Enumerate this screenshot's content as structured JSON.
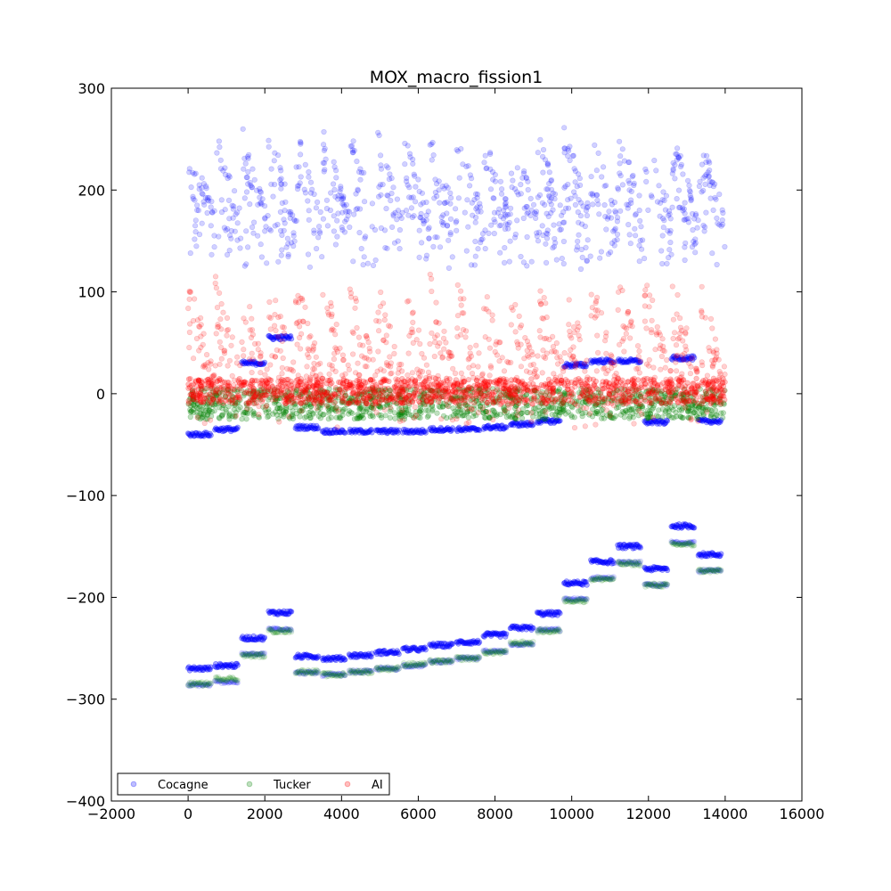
{
  "chart_data": {
    "type": "scatter",
    "title": "MOX_macro_fission1",
    "xlabel": "",
    "ylabel": "",
    "xlim": [
      -2000,
      16000
    ],
    "ylim": [
      -400,
      300
    ],
    "x_ticks": [
      -2000,
      0,
      2000,
      4000,
      6000,
      8000,
      10000,
      12000,
      14000,
      16000
    ],
    "y_ticks": [
      300,
      200,
      100,
      0,
      -100,
      -200,
      -300,
      -400
    ],
    "grid": false,
    "legend_position": "lower-left",
    "series": [
      {
        "name": "Cocagne",
        "color": "#0000ff",
        "marker": "circle",
        "clusters": [
          {
            "name": "upper-band",
            "x_range": [
              0,
              14000
            ],
            "y_range": [
              120,
              265
            ],
            "sawtooth": true
          },
          {
            "name": "lower-step-levels",
            "points": [
              [
                0,
                -270
              ],
              [
                700,
                -267
              ],
              [
                1400,
                -240
              ],
              [
                2100,
                -215
              ],
              [
                2800,
                -258
              ],
              [
                3500,
                -260
              ],
              [
                4200,
                -257
              ],
              [
                4900,
                -254
              ],
              [
                5600,
                -251
              ],
              [
                6300,
                -247
              ],
              [
                7000,
                -244
              ],
              [
                7700,
                -237
              ],
              [
                8400,
                -230
              ],
              [
                9100,
                -216
              ],
              [
                9800,
                -186
              ],
              [
                10500,
                -165
              ],
              [
                11200,
                -150
              ],
              [
                11900,
                -172
              ],
              [
                12600,
                -130
              ],
              [
                13300,
                -158
              ]
            ]
          },
          {
            "name": "mid-negative-levels",
            "points": [
              [
                0,
                -40
              ],
              [
                700,
                -35
              ],
              [
                1400,
                30
              ],
              [
                2100,
                55
              ],
              [
                2800,
                -33
              ],
              [
                3500,
                -37
              ],
              [
                4200,
                -37
              ],
              [
                4900,
                -37
              ],
              [
                5600,
                -37
              ],
              [
                6300,
                -35
              ],
              [
                7000,
                -35
              ],
              [
                7700,
                -33
              ],
              [
                8400,
                -30
              ],
              [
                9100,
                -27
              ],
              [
                9800,
                28
              ],
              [
                10500,
                32
              ],
              [
                11200,
                32
              ],
              [
                11900,
                -28
              ],
              [
                12600,
                35
              ],
              [
                13300,
                -27
              ]
            ]
          }
        ]
      },
      {
        "name": "Tucker",
        "color": "#008000",
        "marker": "circle",
        "clusters": [
          {
            "name": "near-zero-band",
            "x_range": [
              0,
              14000
            ],
            "y_range": [
              -25,
              5
            ]
          },
          {
            "name": "faint-lower-offset",
            "points": [
              [
                0,
                -285
              ],
              [
                700,
                -280
              ],
              [
                1400,
                -257
              ],
              [
                2100,
                -233
              ],
              [
                2800,
                -273
              ],
              [
                3500,
                -276
              ],
              [
                4200,
                -273
              ],
              [
                4900,
                -270
              ],
              [
                5600,
                -266
              ],
              [
                6300,
                -263
              ],
              [
                7000,
                -260
              ],
              [
                7700,
                -254
              ],
              [
                8400,
                -245
              ],
              [
                9100,
                -233
              ],
              [
                9800,
                -203
              ],
              [
                10500,
                -182
              ],
              [
                11200,
                -167
              ],
              [
                11900,
                -188
              ],
              [
                12600,
                -148
              ],
              [
                13300,
                -174
              ]
            ]
          }
        ]
      },
      {
        "name": "AI",
        "color": "#ff0000",
        "marker": "circle",
        "clusters": [
          {
            "name": "sawtooth-band",
            "x_range": [
              0,
              14000
            ],
            "y_range": [
              -40,
              120
            ],
            "sawtooth": true
          },
          {
            "name": "dense-zero-band",
            "x_range": [
              0,
              14000
            ],
            "y_range": [
              -10,
              15
            ]
          }
        ]
      }
    ]
  }
}
